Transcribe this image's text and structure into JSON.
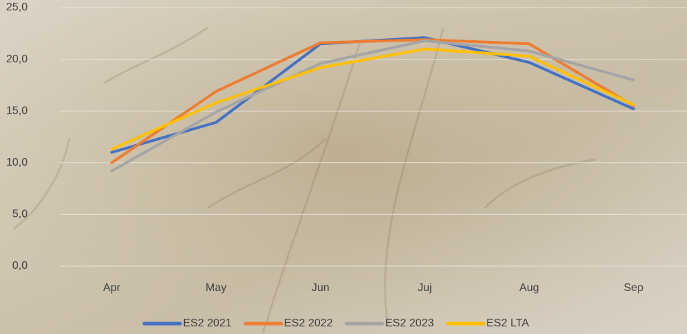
{
  "chart_data": {
    "type": "line",
    "categories": [
      "Apr",
      "May",
      "Jun",
      "Juj",
      "Aug",
      "Sep"
    ],
    "series": [
      {
        "name": "ES2 2021",
        "color": "#4472c4",
        "values": [
          11.0,
          13.9,
          21.5,
          22.1,
          19.7,
          15.2
        ]
      },
      {
        "name": "ES2 2022",
        "color": "#ed7d31",
        "values": [
          10.0,
          16.9,
          21.6,
          21.9,
          21.5,
          15.5
        ]
      },
      {
        "name": "ES2 2023",
        "color": "#a5a5a5",
        "values": [
          9.2,
          14.9,
          19.6,
          21.8,
          20.8,
          18.0
        ]
      },
      {
        "name": "ES2 LTA",
        "color": "#ffc000",
        "values": [
          11.3,
          15.8,
          19.2,
          21.0,
          20.3,
          15.6
        ]
      }
    ],
    "ylim": [
      0,
      25
    ],
    "yticks": [
      {
        "value": 0,
        "label": "0,0"
      },
      {
        "value": 5,
        "label": "5,0"
      },
      {
        "value": 10,
        "label": "10,0"
      },
      {
        "value": 15,
        "label": "15,0"
      },
      {
        "value": 20,
        "label": "20,0"
      },
      {
        "value": 25,
        "label": "25,0"
      }
    ],
    "grid": true,
    "legend": "bottom"
  }
}
